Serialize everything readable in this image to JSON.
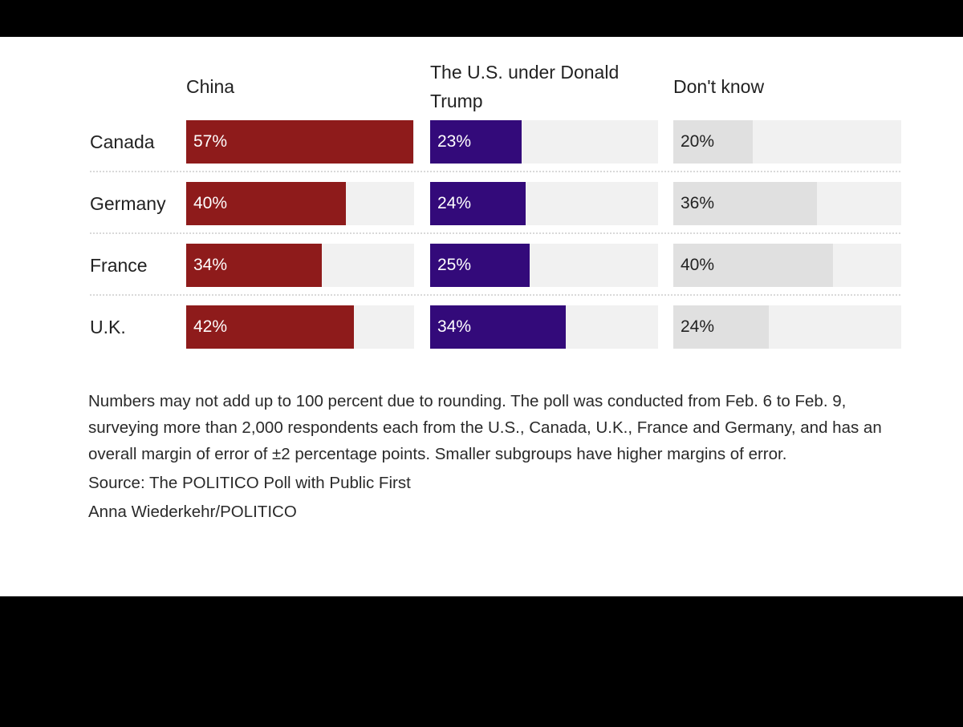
{
  "chart_data": {
    "type": "bar",
    "orientation": "horizontal",
    "categories": [
      "Canada",
      "Germany",
      "France",
      "U.K."
    ],
    "series": [
      {
        "name": "China",
        "values": [
          57,
          40,
          34,
          42
        ],
        "labels": [
          "57%",
          "40%",
          "34%",
          "42%"
        ],
        "color": "#8e1b1b"
      },
      {
        "name": "The U.S. under Donald Trump",
        "values": [
          23,
          24,
          25,
          34
        ],
        "labels": [
          "23%",
          "24%",
          "25%",
          "34%"
        ],
        "color": "#330a7a"
      },
      {
        "name": "Don't know",
        "values": [
          20,
          36,
          40,
          24
        ],
        "labels": [
          "20%",
          "36%",
          "40%",
          "24%"
        ],
        "color": "#e0e0e0"
      }
    ],
    "xlim": [
      0,
      100
    ],
    "grid": false,
    "title": "",
    "xlabel": "",
    "ylabel": ""
  },
  "footer": {
    "note": "Numbers may not add up to 100 percent due to rounding. The poll was conducted from Feb. 6 to Feb. 9, surveying more than 2,000 respondents each from the U.S., Canada, U.K., France and Germany, and has an overall margin of error of ±2 percentage points. Smaller subgroups have higher margins of error.",
    "source": "Source: The POLITICO Poll with Public First",
    "credit": "Anna Wiederkehr/POLITICO"
  }
}
